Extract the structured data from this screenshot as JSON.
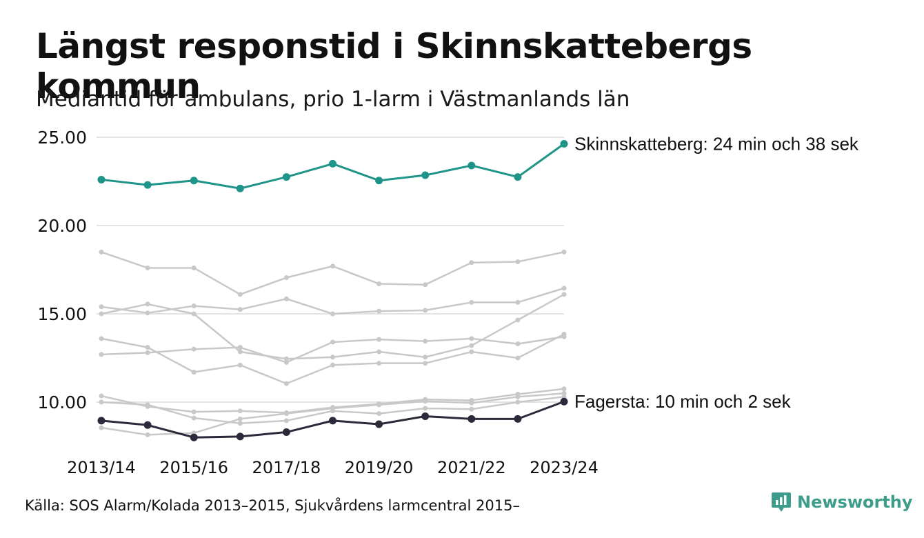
{
  "title": "Längst responstid i Skinnskattebergs kommun",
  "subtitle": "Mediantid för ambulans, prio 1-larm i Västmanlands län",
  "source": "Källa: SOS Alarm/Kolada 2013–2015, Sjukvårdens larmcentral 2015–",
  "brand": {
    "name": "Newsworthy",
    "icon": "newsworthy-logo-icon",
    "color": "#3d9d8a"
  },
  "colors": {
    "highlight": "#1f9488",
    "low": "#2b2a3a",
    "other": "#c8c8c8",
    "grid": "#e2e2e2"
  },
  "chart_data": {
    "type": "line",
    "x": [
      "2013/14",
      "2014/15",
      "2015/16",
      "2016/17",
      "2017/18",
      "2018/19",
      "2019/20",
      "2020/21",
      "2021/22",
      "2022/23",
      "2023/24"
    ],
    "x_tick_labels": [
      "2013/14",
      "2015/16",
      "2017/18",
      "2019/20",
      "2021/22",
      "2023/24"
    ],
    "y_tick_labels": [
      "10.00",
      "15.00",
      "20.00",
      "25.00"
    ],
    "ylim": [
      7.5,
      25.5
    ],
    "grid": true,
    "series": [
      {
        "name": "Skinnskatteberg",
        "label": "Skinnskatteberg: 24 min och 38 sek",
        "role": "highlight",
        "values": [
          22.6,
          22.3,
          22.55,
          22.1,
          22.75,
          23.5,
          22.55,
          22.85,
          23.4,
          22.75,
          24.63
        ]
      },
      {
        "role": "other",
        "values": [
          18.5,
          17.6,
          17.6,
          16.1,
          17.05,
          17.7,
          16.7,
          16.65,
          17.9,
          17.95,
          18.5
        ]
      },
      {
        "role": "other",
        "values": [
          15.4,
          15.05,
          15.45,
          15.25,
          15.85,
          15.0,
          15.15,
          15.2,
          15.65,
          15.65,
          16.45
        ]
      },
      {
        "role": "other",
        "values": [
          15.0,
          15.55,
          15.0,
          12.85,
          12.45,
          12.55,
          12.85,
          12.55,
          13.2,
          14.65,
          16.1
        ]
      },
      {
        "role": "other",
        "values": [
          12.7,
          12.8,
          13.0,
          13.1,
          12.25,
          13.4,
          13.55,
          13.45,
          13.6,
          13.3,
          13.7
        ]
      },
      {
        "role": "other",
        "values": [
          13.6,
          13.1,
          11.7,
          12.1,
          11.05,
          12.1,
          12.2,
          12.2,
          12.85,
          12.5,
          13.85
        ]
      },
      {
        "role": "other",
        "values": [
          10.35,
          9.75,
          9.45,
          9.5,
          9.4,
          9.7,
          9.9,
          10.15,
          10.1,
          10.45,
          10.75
        ]
      },
      {
        "role": "other",
        "values": [
          10.0,
          9.85,
          9.1,
          8.8,
          8.95,
          9.5,
          9.35,
          9.65,
          9.6,
          10.0,
          10.3
        ]
      },
      {
        "role": "other",
        "values": [
          8.55,
          8.15,
          8.25,
          9.05,
          9.35,
          9.65,
          9.85,
          10.05,
          9.95,
          10.3,
          10.5
        ]
      },
      {
        "name": "Fagersta",
        "label": "Fagersta: 10 min och 2 sek",
        "role": "low",
        "values": [
          8.95,
          8.7,
          8.0,
          8.05,
          8.3,
          8.95,
          8.75,
          9.2,
          9.05,
          9.05,
          10.03
        ]
      }
    ]
  }
}
